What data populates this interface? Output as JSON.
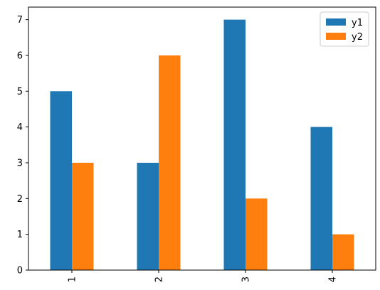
{
  "chart_data": {
    "type": "bar",
    "title": "",
    "xlabel": "",
    "ylabel": "",
    "categories": [
      "1",
      "2",
      "3",
      "4"
    ],
    "series": [
      {
        "name": "y1",
        "values": [
          5,
          3,
          7,
          4
        ],
        "color": "#1f77b4"
      },
      {
        "name": "y2",
        "values": [
          3,
          6,
          2,
          1
        ],
        "color": "#ff7f0e"
      }
    ],
    "ylim": [
      0,
      7.35
    ],
    "yticks": [
      0,
      1,
      2,
      3,
      4,
      5,
      6,
      7
    ],
    "x_tick_rotation": "vertical",
    "grid": false,
    "legend": {
      "placement": "top-right"
    }
  }
}
